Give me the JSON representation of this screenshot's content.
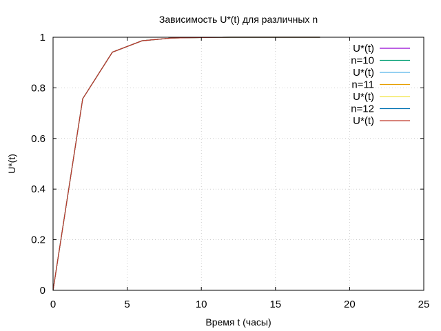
{
  "chart_data": {
    "type": "line",
    "title": "Зависимость U*(t) для различных n",
    "xlabel": "Время t (часы)",
    "ylabel": "U*(t)",
    "xlim": [
      0,
      25
    ],
    "ylim": [
      0,
      1
    ],
    "x_ticks": [
      0,
      5,
      10,
      15,
      20,
      25
    ],
    "y_ticks": [
      0,
      0.2,
      0.4,
      0.6,
      0.8,
      1
    ],
    "x_tick_labels": [
      "0",
      "5",
      "10",
      "15",
      "20",
      "25"
    ],
    "y_tick_labels": [
      "0",
      "0.2",
      "0.4",
      "0.6",
      "0.8",
      "1"
    ],
    "grid": true,
    "legend_position": "top-right",
    "series": [
      {
        "name": "U*(t)",
        "color": "#9400d3",
        "x": [
          0,
          2,
          4,
          6,
          8,
          10,
          12,
          14,
          16,
          18
        ],
        "values": [
          0,
          0.757,
          0.941,
          0.986,
          0.997,
          0.999,
          1.0,
          1.0,
          1.0,
          1.0
        ]
      },
      {
        "name": "n=10",
        "color": "#009e73",
        "x": [
          0,
          2,
          4,
          6,
          8,
          10,
          12,
          14,
          16,
          18
        ],
        "values": [
          0,
          0.757,
          0.941,
          0.986,
          0.997,
          0.999,
          1.0,
          1.0,
          1.0,
          1.0
        ]
      },
      {
        "name": "U*(t)",
        "color": "#56b4e9",
        "x": [
          0,
          2,
          4,
          6,
          8,
          10,
          12,
          14,
          16,
          18
        ],
        "values": [
          0,
          0.757,
          0.941,
          0.986,
          0.997,
          0.999,
          1.0,
          1.0,
          1.0,
          1.0
        ]
      },
      {
        "name": "n=11",
        "color": "#e69f00",
        "x": [
          0,
          2,
          4,
          6,
          8,
          10,
          12,
          14,
          16,
          18
        ],
        "values": [
          0,
          0.757,
          0.941,
          0.986,
          0.997,
          0.999,
          1.0,
          1.0,
          1.0,
          1.0
        ]
      },
      {
        "name": "U*(t)",
        "color": "#f0e442",
        "x": [
          0,
          2,
          4,
          6,
          8,
          10,
          12,
          14,
          16,
          18
        ],
        "values": [
          0,
          0.757,
          0.941,
          0.986,
          0.997,
          0.999,
          1.0,
          1.0,
          1.0,
          1.0
        ]
      },
      {
        "name": "n=12",
        "color": "#0072b2",
        "x": [
          0,
          2,
          4,
          6,
          8,
          10,
          12,
          14,
          16,
          18
        ],
        "values": [
          0,
          0.757,
          0.941,
          0.986,
          0.997,
          0.999,
          1.0,
          1.0,
          1.0,
          1.0
        ]
      },
      {
        "name": "U*(t)",
        "color": "#c0392b",
        "x": [
          0,
          2,
          4,
          6,
          8,
          10,
          12,
          14,
          16,
          18
        ],
        "values": [
          0,
          0.757,
          0.941,
          0.986,
          0.997,
          0.999,
          1.0,
          1.0,
          1.0,
          1.0
        ]
      }
    ]
  }
}
